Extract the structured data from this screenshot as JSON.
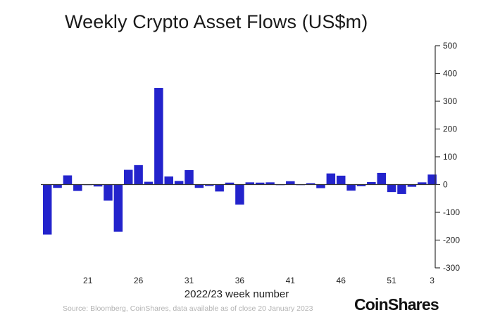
{
  "header": {
    "title": "Weekly Crypto Asset Flows (US$m)"
  },
  "footer": {
    "source": "Source: Bloomberg, CoinShares, data available as of close 20 January 2023",
    "brand": "CoinShares"
  },
  "colors": {
    "bar": "#2323cc",
    "axis": "#333333",
    "text": "#222222"
  },
  "chart_data": {
    "type": "bar",
    "title": "Weekly Crypto Asset Flows (US$m)",
    "xlabel": "2022/23 week number",
    "ylabel": "",
    "ylim": [
      -300,
      500
    ],
    "y_ticks": [
      500,
      400,
      300,
      200,
      100,
      0,
      -100,
      -200,
      -300
    ],
    "y_axis_position": "right",
    "grid": false,
    "x_tick_labels": [
      {
        "category": "21",
        "label": "21"
      },
      {
        "category": "26",
        "label": "26"
      },
      {
        "category": "31",
        "label": "31"
      },
      {
        "category": "36",
        "label": "36"
      },
      {
        "category": "41",
        "label": "41"
      },
      {
        "category": "46",
        "label": "46"
      },
      {
        "category": "51",
        "label": "51"
      },
      {
        "category": "3",
        "label": "3"
      }
    ],
    "categories": [
      "17",
      "18",
      "19",
      "20",
      "21",
      "22",
      "23",
      "24",
      "25",
      "26",
      "27",
      "28",
      "29",
      "30",
      "31",
      "32",
      "33",
      "34",
      "35",
      "36",
      "37",
      "38",
      "39",
      "40",
      "41",
      "42",
      "43",
      "44",
      "45",
      "46",
      "47",
      "48",
      "49",
      "50",
      "51",
      "52",
      "1",
      "2",
      "3"
    ],
    "values": [
      -180,
      -12,
      33,
      -23,
      -2,
      -7,
      -58,
      -170,
      53,
      70,
      10,
      348,
      29,
      13,
      52,
      -12,
      -5,
      -25,
      7,
      -72,
      8,
      7,
      8,
      -2,
      12,
      -2,
      5,
      -13,
      40,
      32,
      -22,
      -6,
      9,
      42,
      -27,
      -34,
      -8,
      8,
      36
    ]
  }
}
